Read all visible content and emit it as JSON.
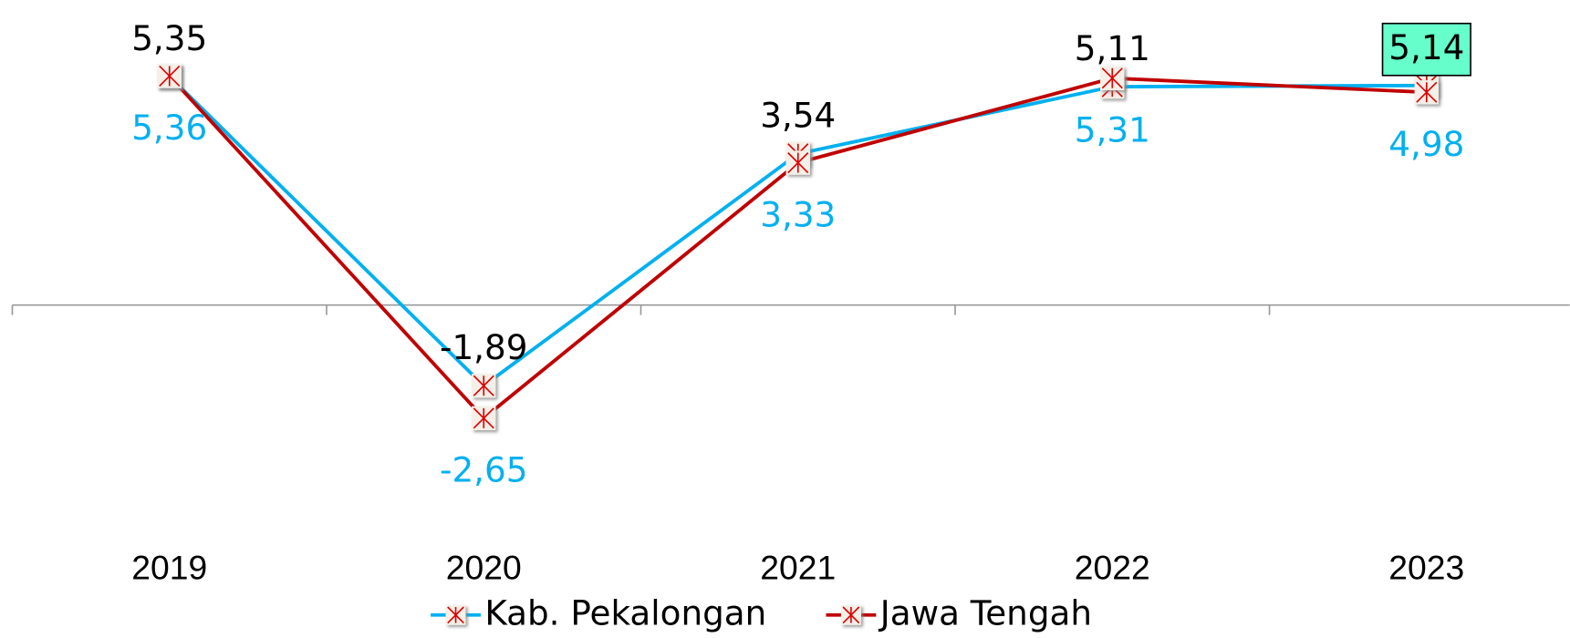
{
  "chart_data": {
    "type": "line",
    "categories": [
      "2019",
      "2020",
      "2021",
      "2022",
      "2023"
    ],
    "series": [
      {
        "name": "Kab. Pekalongan",
        "color": "#00b0f0",
        "label_color": "#000000",
        "label_position": "above",
        "highlight_index": 4,
        "highlight_color": "#66ffcc",
        "values": [
          5.35,
          -1.89,
          3.54,
          5.11,
          5.14
        ],
        "value_labels": [
          "5,35",
          "-1,89",
          "3,54",
          "5,11",
          "5,14"
        ]
      },
      {
        "name": "Jawa Tengah",
        "color": "#c00000",
        "label_color": "#00b0f0",
        "label_position": "below",
        "values": [
          5.36,
          -2.65,
          3.33,
          5.31,
          4.98
        ],
        "value_labels": [
          "5,36",
          "-2,65",
          "3,33",
          "5,31",
          "4,98"
        ]
      }
    ],
    "ylim": [
      -7,
      7
    ],
    "marker_color": "#e00000"
  }
}
